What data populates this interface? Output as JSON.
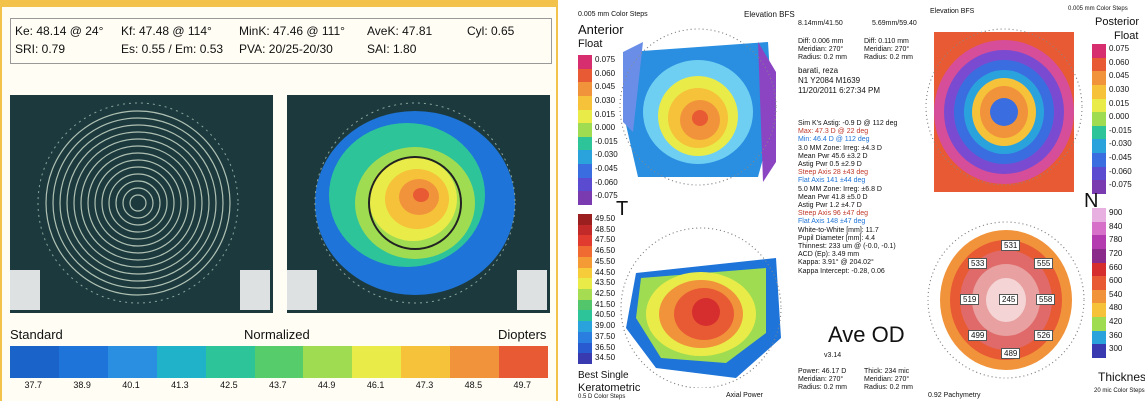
{
  "left": {
    "header": {
      "k": "Ke: 48.14 @ 24°",
      "kf": "Kf: 47.48 @ 114°",
      "mink": "MinK: 47.46 @ 111°",
      "avek": "AveK: 47.81",
      "cyl": "Cyl: 0.65",
      "sri": "SRI: 0.79",
      "es": "Es: 0.55 / Em: 0.53",
      "pva": "PVA: 20/25-20/30",
      "sai": "SAI: 1.80"
    },
    "labels": {
      "standard": "Standard",
      "normalized": "Normalized",
      "diopters": "Diopters"
    },
    "scale_values": [
      "37.7",
      "38.9",
      "40.1",
      "41.3",
      "42.5",
      "43.7",
      "44.9",
      "46.1",
      "47.3",
      "48.5",
      "49.7"
    ],
    "scale_colors": [
      "#1a63c8",
      "#1e74d8",
      "#2a8fe0",
      "#1fb2c8",
      "#2ec49a",
      "#57cc6a",
      "#9fdc52",
      "#e9ec48",
      "#f5c23a",
      "#f1933a",
      "#e85a33"
    ]
  },
  "right": {
    "top_left": {
      "unit": "0.005 mm Color Steps",
      "title": "Anterior",
      "sub": "Float"
    },
    "top_center": {
      "title": "Elevation BFS",
      "r1": "8.14mm/41.50",
      "r2": "5.69mm/59.40"
    },
    "top_right": {
      "title": "Elevation BFS",
      "unit": "0.005 mm Color Steps",
      "heading": "Posterior",
      "sub": "Float"
    },
    "diff1": {
      "d": "Diff: 0.006 mm",
      "m": "Meridian: 270°",
      "r": "Radius: 0.2 mm"
    },
    "diff2": {
      "d": "Diff: 0.110 mm",
      "m": "Meridian: 270°",
      "r": "Radius: 0.2 mm"
    },
    "patient": {
      "name": "barati, reza",
      "id": "N1 Y2084 M1639",
      "date": "11/20/2011 6:27:34 PM"
    },
    "anterior_scale": [
      "0.075",
      "0.060",
      "0.045",
      "0.030",
      "0.015",
      "0.000",
      "-0.015",
      "-0.030",
      "-0.045",
      "-0.060",
      "-0.075"
    ],
    "posterior_scale": [
      "0.075",
      "0.060",
      "0.045",
      "0.030",
      "0.015",
      "0.000",
      "-0.015",
      "-0.030",
      "-0.045",
      "-0.060",
      "-0.075"
    ],
    "kerato_scale": [
      "49.50",
      "48.50",
      "47.50",
      "46.50",
      "45.50",
      "44.50",
      "43.50",
      "42.50",
      "41.50",
      "40.50",
      "39.00",
      "37.50",
      "36.50",
      "34.50"
    ],
    "pachy_scale": [
      "900",
      "840",
      "780",
      "720",
      "660",
      "600",
      "540",
      "480",
      "420",
      "360",
      "300"
    ],
    "stats": [
      "Sim K's Astig: -0.9 D @ 112 deg",
      "Max: 47.3 D @ 22 deg",
      "Min: 46.4 D @ 112 deg",
      "3.0 MM Zone: Irreg: ±4.3 D",
      "Mean Pwr 45.6 ±3.2 D",
      "Astig Pwr 0.5 ±2.9 D",
      "Steep Axis 28 ±43 deg",
      "Flat Axis 141 ±44 deg",
      "5.0 MM Zone: Irreg: ±6.8 D",
      "Mean Pwr 41.8 ±5.0 D",
      "Astig Pwr 1.2 ±4.7 D",
      "Steep Axis 96 ±47 deg",
      "Flat Axis 148 ±47 deg",
      "White-to-White [mm]: 11.7",
      "Pupil Diameter [mm]: 4.4",
      "Thinnest: 233 um @ (-0.0, -0.1)",
      "ACD (Ep): 3.49 mm",
      "Kappa: 3.91° @ 204.02°",
      "Kappa Intercept: -0.28, 0.06"
    ],
    "big": {
      "t": "T",
      "n": "N",
      "ave": "Ave OD",
      "thickness": "Thickness"
    },
    "bottom_left": {
      "l1": "Best Single",
      "l2": "Keratometric",
      "l3": "0.5 D Color Steps",
      "axial": "Axial Power"
    },
    "bottom_center": {
      "p": "Power: 46.17 D",
      "m": "Meridian: 270°",
      "r": "Radius: 0.2 mm",
      "t": "Thick: 234 mic",
      "tm": "Meridian: 270°",
      "tr": "Radius: 0.2 mm"
    },
    "bottom_right": {
      "pachy": "0.92 Pachymetry",
      "steps": "20 mic Color Steps"
    },
    "pachy_values": [
      "531",
      "533",
      "555",
      "519",
      "245",
      "558",
      "499",
      "526",
      "489"
    ],
    "version": "v3.14"
  }
}
